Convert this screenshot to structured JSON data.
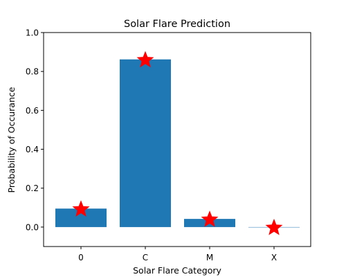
{
  "chart_data": {
    "type": "bar",
    "title": "Solar Flare Prediction",
    "xlabel": "Solar Flare Category",
    "ylabel": "Probability of Occurance",
    "categories": [
      "0",
      "C",
      "M",
      "X"
    ],
    "values": [
      0.095,
      0.862,
      0.042,
      0.0
    ],
    "markers": [
      0.095,
      0.862,
      0.042,
      0.0
    ],
    "ylim": [
      -0.1,
      1.0
    ],
    "yticks": [
      "0.0",
      "0.2",
      "0.4",
      "0.6",
      "0.8",
      "1.0"
    ],
    "ytick_values": [
      0.0,
      0.2,
      0.4,
      0.6,
      0.8,
      1.0
    ],
    "grid": false,
    "legend": "none",
    "bar_color": "#1f77b4",
    "marker_color": "#ff0000",
    "marker_shape": "star-icon"
  }
}
